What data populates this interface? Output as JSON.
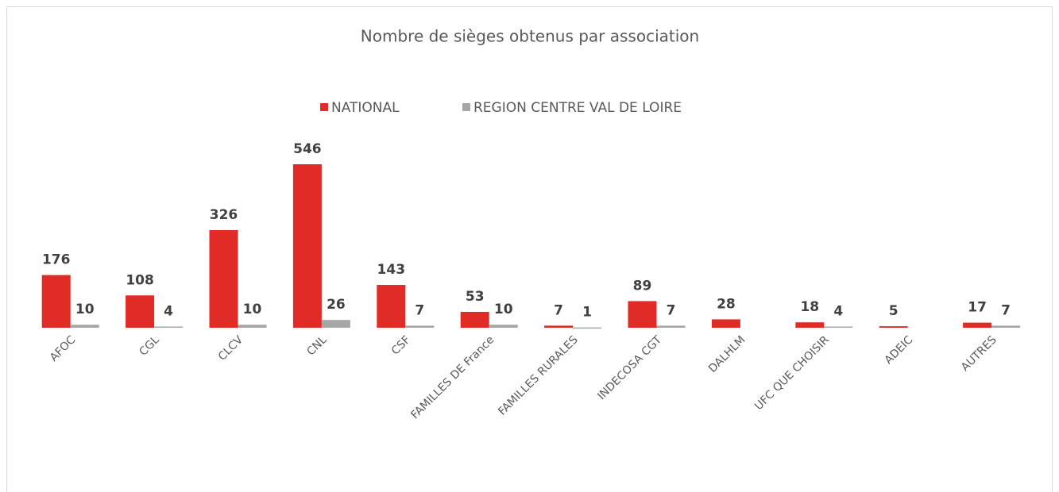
{
  "chart_data": {
    "type": "bar",
    "title": "Nombre de sièges obtenus par association",
    "categories": [
      "AFOC",
      "CGL",
      "CLCV",
      "CNL",
      "CSF",
      "FAMILLES DE France",
      "FAMILLES RURALES",
      "INDECOSA CGT",
      "DALHLM",
      "UFC QUE CHOISIR",
      "ADEIC",
      "AUTRES"
    ],
    "series": [
      {
        "name": "NATIONAL",
        "color": "#e02b27",
        "values": [
          176,
          108,
          326,
          546,
          143,
          53,
          7,
          89,
          28,
          18,
          5,
          17
        ]
      },
      {
        "name": "REGION CENTRE VAL DE LOIRE",
        "color": "#a6a6a6",
        "values": [
          10,
          4,
          10,
          26,
          7,
          10,
          1,
          7,
          null,
          4,
          null,
          7
        ]
      }
    ],
    "legend": "top"
  }
}
